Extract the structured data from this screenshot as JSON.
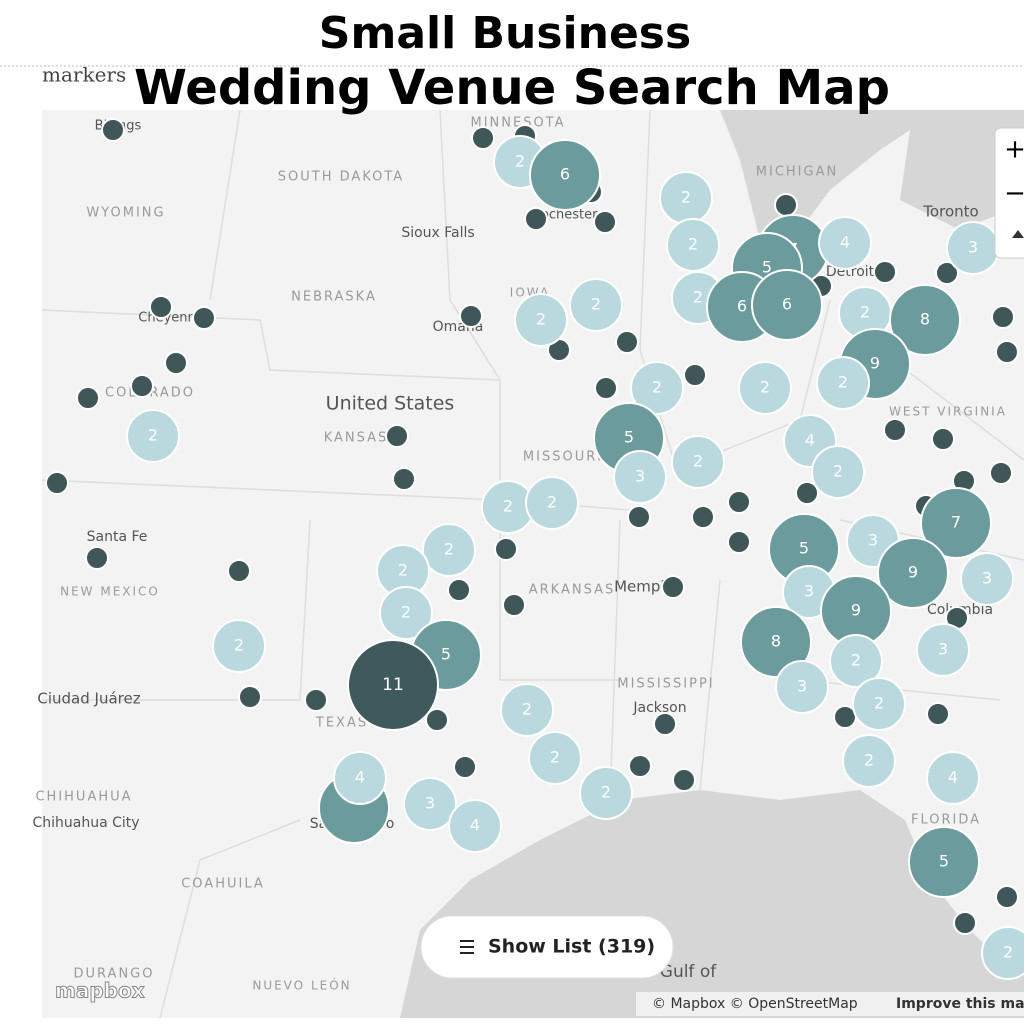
{
  "header": {
    "title_line1": "Small Business",
    "title_line2": "Wedding Venue Search Map",
    "brand": "markers"
  },
  "map_labels": [
    "MINNESOTA",
    "SOUTH DAKOTA",
    "WYOMING",
    "Sioux Falls",
    "NEBRASKA",
    "Omaha",
    "IOWA",
    "Rochester",
    "MICHIGAN",
    "Toronto",
    "Detroit",
    "Cheyenne",
    "COLORADO",
    "United States",
    "KANSAS",
    "MISSOURI",
    "WEST VIRGINIA",
    "Santa Fe",
    "NEW MEXICO",
    "ARKANSAS",
    "Memphis",
    "MISSISSIPPI",
    "Jackson",
    "TEXAS",
    "Ciudad Juárez",
    "CHIHUAHUA",
    "Chihuahua City",
    "San Antonio",
    "COAHUILA",
    "DURANGO",
    "NUEVO LEÓN",
    "Gulf of",
    "FLORIDA",
    "Columbia",
    "Billings"
  ],
  "clusters": [
    2,
    6,
    2,
    2,
    7,
    5,
    4,
    3,
    2,
    6,
    6,
    2,
    8,
    2,
    2,
    9,
    2,
    2,
    2,
    5,
    4,
    2,
    3,
    2,
    2,
    2,
    2,
    7,
    5,
    3,
    9,
    3,
    2,
    2,
    2,
    3,
    9,
    5,
    2,
    11,
    8,
    3,
    2,
    3,
    2,
    2,
    2,
    2,
    4,
    2,
    4,
    3,
    4,
    5,
    2
  ],
  "controls": {
    "zoom_in": "+",
    "zoom_out": "−",
    "show_list": "Show List (319)",
    "logo": "mapbox",
    "attribution": "© Mapbox © OpenStreetMap",
    "improve": "Improve this map"
  }
}
